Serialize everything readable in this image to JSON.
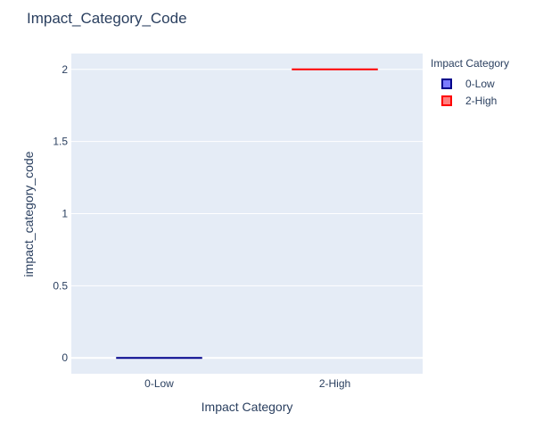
{
  "chart_data": {
    "type": "box",
    "title": "Impact_Category_Code",
    "xlabel": "Impact Category",
    "ylabel": "impact_category_code",
    "categories": [
      "0-Low",
      "2-High"
    ],
    "ylim": [
      -0.11,
      2.11
    ],
    "yticks": [
      0,
      0.5,
      1,
      1.5,
      2
    ],
    "yticklabels": [
      "0",
      "0.5",
      "1",
      "1.5",
      "2"
    ],
    "grid": true,
    "legend": {
      "title": "Impact Category",
      "placement": "right"
    },
    "series": [
      {
        "name": "0-Low",
        "category": "0-Low",
        "values": [
          0
        ],
        "color": "#00008b",
        "fill": "#7b7bff"
      },
      {
        "name": "2-High",
        "category": "2-High",
        "values": [
          2
        ],
        "color": "#ff0000",
        "fill": "#ff7f7f"
      }
    ]
  }
}
